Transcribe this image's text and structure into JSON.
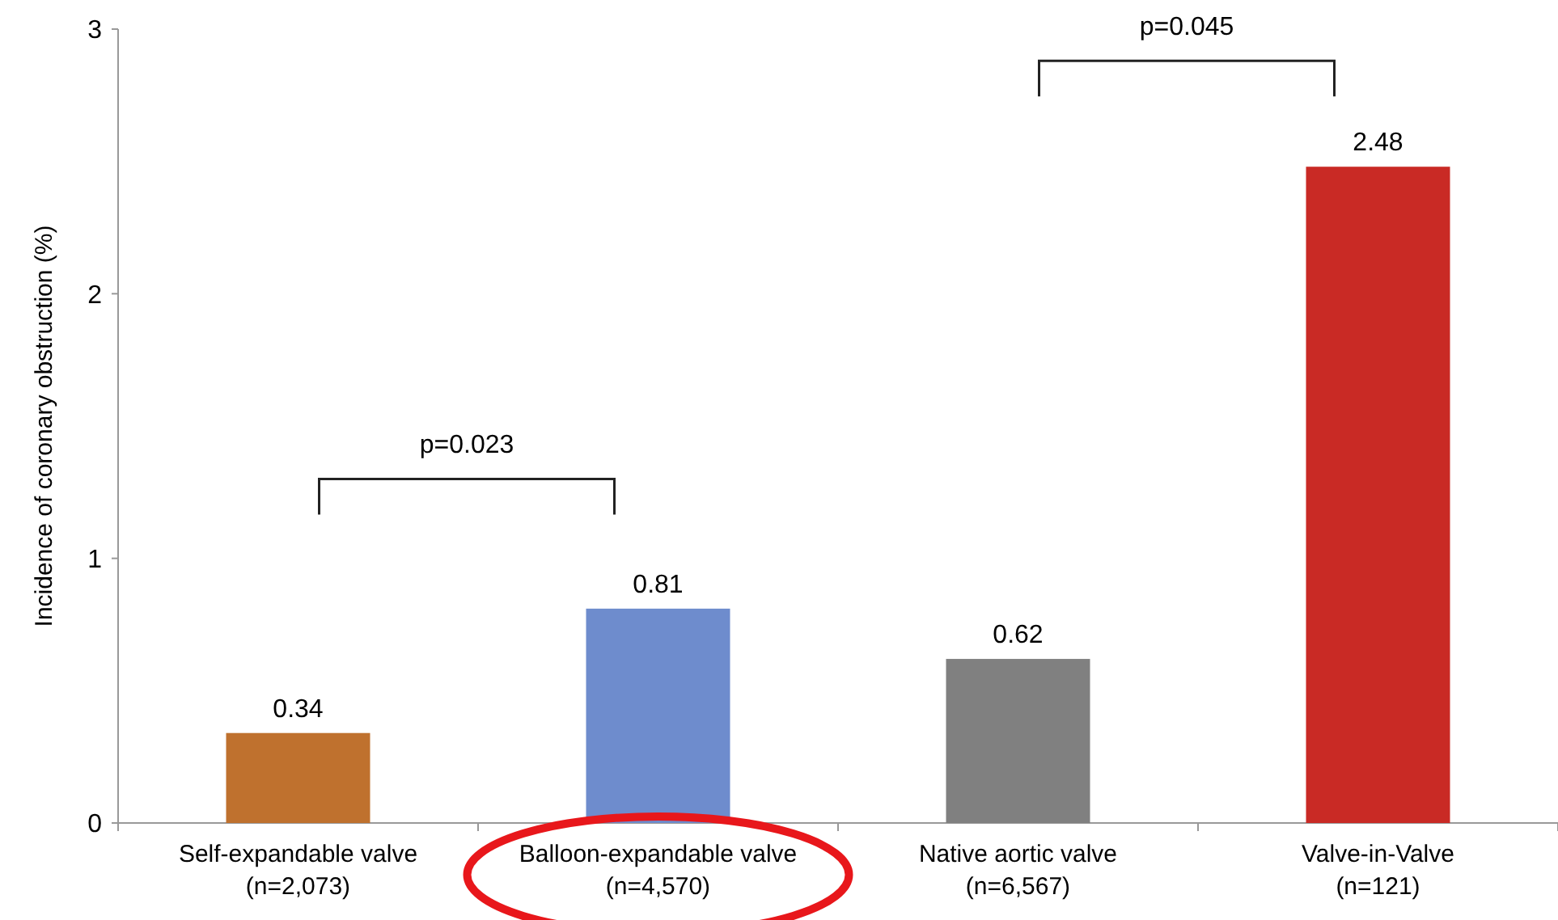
{
  "chart_data": {
    "type": "bar",
    "ylabel": "Incidence of coronary obstruction (%)",
    "categories": [
      "Self-expandable valve\n(n=2,073)",
      "Balloon-expandable valve\n(n=4,570)",
      "Native aortic valve\n(n=6,567)",
      "Valve-in-Valve\n(n=121)"
    ],
    "values": [
      0.34,
      0.81,
      0.62,
      2.48
    ],
    "colors": [
      "#bf712e",
      "#6e8ccd",
      "#808080",
      "#c92a25"
    ],
    "ylim": [
      0,
      3
    ],
    "yticks": [
      0,
      1,
      2,
      3
    ],
    "data_labels": true,
    "annotations": [
      "p=0.023",
      "p=0.045"
    ]
  }
}
